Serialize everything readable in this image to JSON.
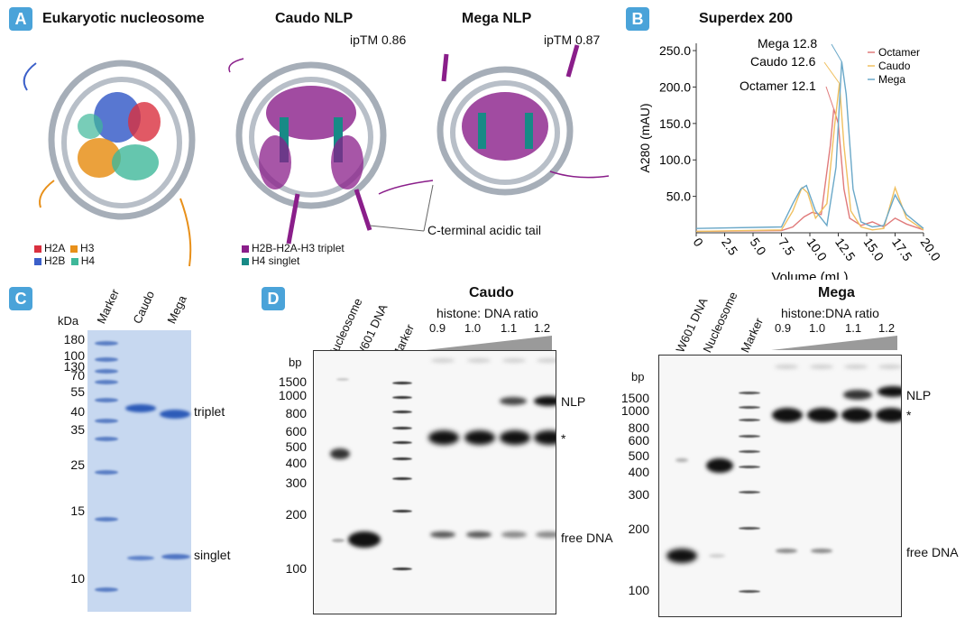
{
  "panelA": {
    "letter": "A",
    "title_nucleosome": "Eukaryotic nucleosome",
    "title_caudo": "Caudo NLP",
    "title_mega": "Mega NLP",
    "iptm_caudo": "ipTM 0.86",
    "iptm_mega": "ipTM 0.87",
    "legend_histones": [
      {
        "label": "H2A",
        "color": "#d9303f"
      },
      {
        "label": "H3",
        "color": "#e8901a"
      },
      {
        "label": "H2B",
        "color": "#3b5fc9"
      },
      {
        "label": "H4",
        "color": "#3fb89a"
      }
    ],
    "legend_nlp": [
      {
        "label": "H2B-H2A-H3 triplet",
        "color": "#8a1e8a"
      },
      {
        "label": "H4 singlet",
        "color": "#178a86"
      }
    ],
    "tail_label": "C-terminal acidic tail"
  },
  "panelB": {
    "letter": "B",
    "chart_data": {
      "type": "line",
      "title": "Superdex 200",
      "xlabel": "Volume (mL)",
      "ylabel": "A280 (mAU)",
      "xlim": [
        0,
        20
      ],
      "ylim": [
        0,
        260
      ],
      "xticks": [
        "0",
        "2.5",
        "5.0",
        "7.5",
        "10.0",
        "12.5",
        "15.0",
        "17.5",
        "20.0"
      ],
      "yticks": [
        "50.0",
        "100.0",
        "150.0",
        "200.0",
        "250.0"
      ],
      "legend_position": "top-right",
      "annotations": [
        "Mega 12.8",
        "Caudo 12.6",
        "Octamer 12.1"
      ],
      "series": [
        {
          "name": "Octamer",
          "color": "#e07a7a",
          "x": [
            0,
            7.5,
            8.5,
            9.5,
            10.2,
            11.0,
            11.8,
            12.1,
            12.5,
            13.0,
            13.5,
            14.5,
            15.5,
            16.5,
            17.5,
            18.5,
            20
          ],
          "y": [
            2,
            3,
            8,
            22,
            28,
            25,
            120,
            170,
            150,
            60,
            20,
            10,
            15,
            8,
            20,
            12,
            4
          ]
        },
        {
          "name": "Caudo",
          "color": "#f0c060",
          "x": [
            0,
            7.5,
            8.5,
            9.3,
            9.8,
            10.5,
            11.5,
            12.2,
            12.6,
            13.0,
            13.6,
            14.5,
            15.5,
            16.5,
            17.5,
            18.5,
            20
          ],
          "y": [
            2,
            4,
            30,
            62,
            55,
            20,
            40,
            150,
            205,
            120,
            30,
            8,
            4,
            6,
            62,
            20,
            4
          ]
        },
        {
          "name": "Mega",
          "color": "#6aa8c8",
          "x": [
            0,
            7.5,
            8.5,
            9.2,
            9.7,
            10.5,
            11.5,
            12.3,
            12.8,
            13.2,
            13.8,
            14.5,
            15.5,
            16.5,
            17.5,
            18.5,
            20
          ],
          "y": [
            6,
            8,
            40,
            60,
            65,
            30,
            10,
            90,
            235,
            190,
            60,
            15,
            8,
            10,
            52,
            25,
            6
          ]
        }
      ]
    }
  },
  "panelC": {
    "letter": "C",
    "unit": "kDa",
    "lanes": [
      "Marker",
      "Caudo",
      "Mega"
    ],
    "markers": [
      "180",
      "100",
      "130",
      "70",
      "55",
      "40",
      "35",
      "25",
      "15",
      "10"
    ],
    "band_labels": [
      "triplet",
      "singlet"
    ]
  },
  "panelD": {
    "letter": "D",
    "caudo": {
      "title": "Caudo",
      "ratio_label": "histone: DNA ratio",
      "ratios": [
        "0.9",
        "1.0",
        "1.1",
        "1.2"
      ],
      "lanes": [
        "Nucleosome",
        "W601 DNA",
        "Marker"
      ],
      "unit": "bp",
      "markers": [
        "1500",
        "1000",
        "800",
        "600",
        "500",
        "400",
        "300",
        "200",
        "100"
      ],
      "labels": [
        "NLP",
        "*",
        "free DNA"
      ]
    },
    "mega": {
      "title": "Mega",
      "ratio_label": "histone:DNA ratio",
      "ratios": [
        "0.9",
        "1.0",
        "1.1",
        "1.2"
      ],
      "lanes": [
        "W601 DNA",
        "Nucleosome",
        "Marker"
      ],
      "unit": "bp",
      "markers": [
        "1500",
        "1000",
        "800",
        "600",
        "500",
        "400",
        "300",
        "200",
        "100"
      ],
      "labels": [
        "NLP",
        "*",
        "free DNA"
      ]
    }
  }
}
